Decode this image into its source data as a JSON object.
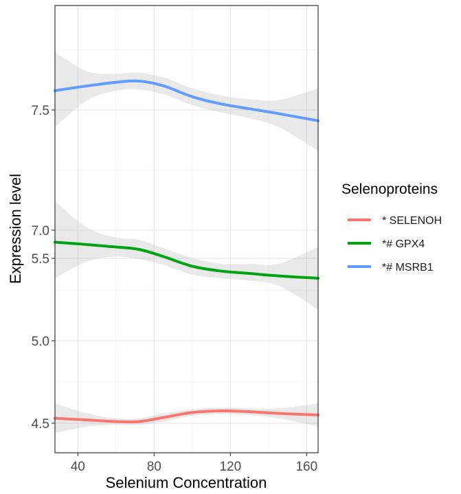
{
  "chart_data": {
    "type": "line",
    "xlabel": "Selenium Concentration",
    "ylabel": "Expression level",
    "xlim": [
      28,
      166
    ],
    "x_ticks": [
      40,
      80,
      120,
      160
    ],
    "y_ticks": [
      "4.5",
      "5.0",
      "5.5",
      "7.0",
      "7.5"
    ],
    "y_axis_note": "broken y axis: tick labels 5.5 and 5.0 sit close together",
    "grid": true,
    "background": "white",
    "legend": {
      "title": "Selenoproteins",
      "position": "right"
    },
    "series": [
      {
        "name": "* SELENOH",
        "color": "#F8766D",
        "x": [
          28,
          45,
          60,
          72,
          85,
          100,
          115,
          130,
          145,
          166
        ],
        "y": [
          4.53,
          4.52,
          4.51,
          4.51,
          4.535,
          4.565,
          4.575,
          4.57,
          4.56,
          4.55
        ],
        "ci_lower": [
          4.44,
          4.48,
          4.49,
          4.49,
          4.51,
          4.545,
          4.555,
          4.55,
          4.53,
          4.48
        ],
        "ci_upper": [
          4.62,
          4.56,
          4.53,
          4.53,
          4.56,
          4.585,
          4.595,
          4.59,
          4.59,
          4.62
        ]
      },
      {
        "name": "*# GPX4",
        "color": "#00A313",
        "x": [
          28,
          45,
          60,
          72,
          85,
          100,
          115,
          130,
          145,
          166
        ],
        "y": [
          6.95,
          6.94,
          6.93,
          6.92,
          6.89,
          6.85,
          6.83,
          6.82,
          6.81,
          6.8
        ],
        "ci_lower": [
          6.8,
          6.87,
          6.89,
          6.88,
          6.855,
          6.815,
          6.8,
          6.79,
          6.77,
          6.67
        ],
        "ci_upper": [
          7.12,
          7.01,
          6.97,
          6.96,
          6.925,
          6.885,
          6.86,
          6.86,
          6.86,
          6.93
        ]
      },
      {
        "name": "*# MSRB1",
        "color": "#619CFF",
        "x": [
          28,
          45,
          60,
          72,
          85,
          100,
          115,
          130,
          145,
          166
        ],
        "y": [
          7.58,
          7.6,
          7.615,
          7.62,
          7.6,
          7.555,
          7.525,
          7.505,
          7.485,
          7.455
        ],
        "ci_lower": [
          7.43,
          7.54,
          7.58,
          7.585,
          7.565,
          7.52,
          7.49,
          7.465,
          7.43,
          7.33
        ],
        "ci_upper": [
          7.74,
          7.66,
          7.65,
          7.655,
          7.635,
          7.59,
          7.56,
          7.545,
          7.54,
          7.59
        ]
      }
    ]
  }
}
